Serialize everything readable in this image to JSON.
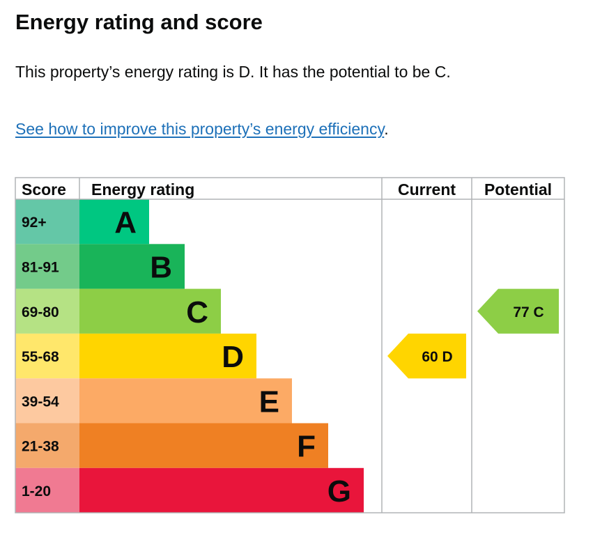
{
  "heading": "Energy rating and score",
  "description": "This property’s energy rating is D. It has the potential to be C.",
  "link": {
    "text": "See how to improve this property’s energy efficiency",
    "suffix": "."
  },
  "chart_data": {
    "type": "table",
    "headers": {
      "score": "Score",
      "rating": "Energy rating",
      "current": "Current",
      "potential": "Potential"
    },
    "bands": [
      {
        "letter": "A",
        "range": "92+",
        "color": "#008054",
        "score_bg": "#64c7a7",
        "bar_color": "#00c781",
        "text_color": "#0b0c0c"
      },
      {
        "letter": "B",
        "range": "81-91",
        "color": "#19b459",
        "score_bg": "#73cb8a",
        "bar_color": "#19b459",
        "text_color": "#0b0c0c"
      },
      {
        "letter": "C",
        "range": "69-80",
        "color": "#8dce46",
        "score_bg": "#b5e284",
        "bar_color": "#8dce46",
        "text_color": "#0b0c0c"
      },
      {
        "letter": "D",
        "range": "55-68",
        "color": "#ffd500",
        "score_bg": "#ffe76b",
        "bar_color": "#ffd500",
        "text_color": "#0b0c0c"
      },
      {
        "letter": "E",
        "range": "39-54",
        "color": "#fcaa65",
        "score_bg": "#fdc9a0",
        "bar_color": "#fcaa65",
        "text_color": "#0b0c0c"
      },
      {
        "letter": "F",
        "range": "21-38",
        "color": "#ef8023",
        "score_bg": "#f4a96c",
        "bar_color": "#ef8023",
        "text_color": "#0b0c0c"
      },
      {
        "letter": "G",
        "range": "1-20",
        "color": "#e9153b",
        "score_bg": "#f07a92",
        "bar_color": "#e9153b",
        "text_color": "#0b0c0c"
      }
    ],
    "current": {
      "score": 60,
      "letter": "D",
      "color": "#ffd500"
    },
    "potential": {
      "score": 77,
      "letter": "C",
      "color": "#8dce46"
    }
  }
}
